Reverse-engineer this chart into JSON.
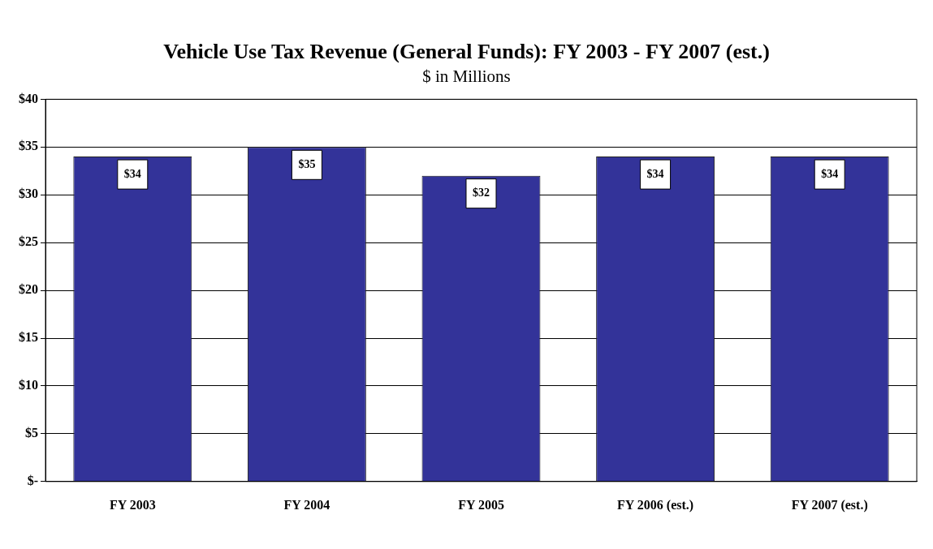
{
  "chart_data": {
    "type": "bar",
    "title": "Vehicle Use Tax Revenue (General Funds): FY 2003 - FY 2007 (est.)",
    "subtitle": "$ in Millions",
    "categories": [
      "FY 2003",
      "FY 2004",
      "FY 2005",
      "FY 2006 (est.)",
      "FY 2007 (est.)"
    ],
    "values": [
      34,
      35,
      32,
      34,
      34
    ],
    "value_labels": [
      "$34",
      "$35",
      "$32",
      "$34",
      "$34"
    ],
    "color": "#333399",
    "ylim": [
      0,
      40
    ],
    "yticks": [
      {
        "value": 0,
        "label": "$-"
      },
      {
        "value": 5,
        "label": "$5"
      },
      {
        "value": 10,
        "label": "$10"
      },
      {
        "value": 15,
        "label": "$15"
      },
      {
        "value": 20,
        "label": "$20"
      },
      {
        "value": 25,
        "label": "$25"
      },
      {
        "value": 30,
        "label": "$30"
      },
      {
        "value": 35,
        "label": "$35"
      },
      {
        "value": 40,
        "label": "$40"
      }
    ],
    "grid": "y",
    "legend": false
  }
}
